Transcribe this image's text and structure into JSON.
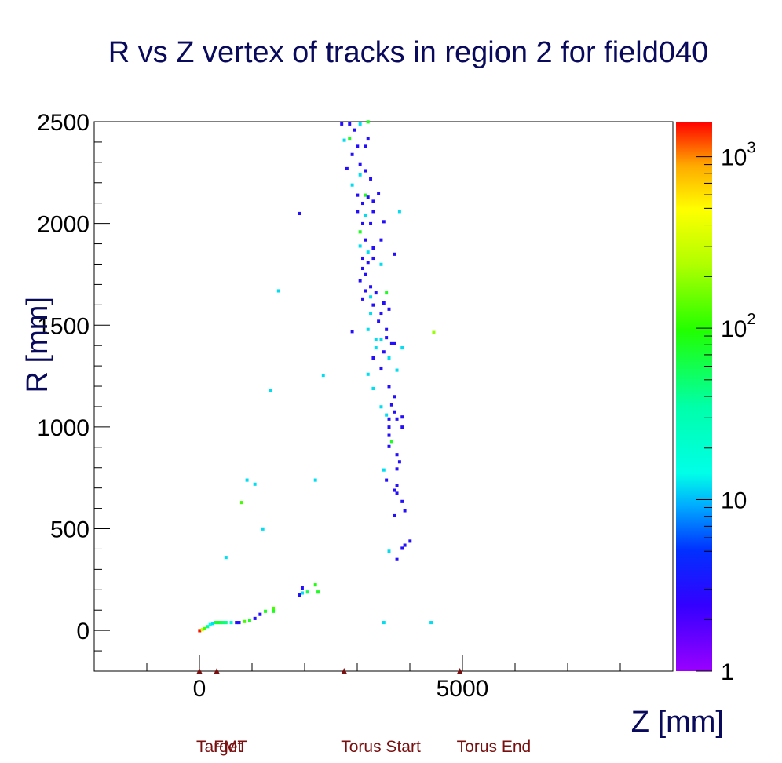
{
  "chart_data": {
    "type": "heatmap",
    "title": "R vs Z vertex of tracks in region 2 for field040",
    "xlabel": "Z [mm]",
    "ylabel": "R [mm]",
    "xlim": [
      -2000,
      9000
    ],
    "ylim": [
      -200,
      2500
    ],
    "xticks": [
      0,
      5000
    ],
    "yticks": [
      0,
      500,
      1000,
      1500,
      2000,
      2500
    ],
    "colorbar": {
      "scale": "log",
      "min": 1,
      "max": 1600,
      "tick_labels": [
        "1",
        "10",
        "10^2",
        "10^3"
      ],
      "tick_values": [
        1,
        10,
        100,
        1000
      ]
    },
    "grid": false,
    "cells": [
      [
        0,
        0,
        1500
      ],
      [
        50,
        5,
        300
      ],
      [
        100,
        10,
        120
      ],
      [
        150,
        20,
        40
      ],
      [
        200,
        30,
        15
      ],
      [
        250,
        35,
        12
      ],
      [
        300,
        40,
        60
      ],
      [
        350,
        40,
        80
      ],
      [
        400,
        40,
        60
      ],
      [
        450,
        40,
        50
      ],
      [
        500,
        40,
        40
      ],
      [
        600,
        40,
        20
      ],
      [
        700,
        40,
        3
      ],
      [
        750,
        40,
        3
      ],
      [
        850,
        45,
        120
      ],
      [
        950,
        50,
        80
      ],
      [
        1050,
        60,
        3
      ],
      [
        1150,
        80,
        3
      ],
      [
        1250,
        95,
        80
      ],
      [
        1400,
        110,
        120
      ],
      [
        1400,
        95,
        80
      ],
      [
        1900,
        175,
        3
      ],
      [
        1950,
        185,
        12
      ],
      [
        2050,
        190,
        60
      ],
      [
        1950,
        210,
        3
      ],
      [
        2200,
        225,
        90
      ],
      [
        2250,
        190,
        80
      ],
      [
        500,
        360,
        12
      ],
      [
        1200,
        500,
        12
      ],
      [
        800,
        630,
        120
      ],
      [
        900,
        740,
        12
      ],
      [
        1050,
        720,
        12
      ],
      [
        2200,
        740,
        12
      ],
      [
        1350,
        1180,
        12
      ],
      [
        2350,
        1255,
        12
      ],
      [
        1500,
        1670,
        12
      ],
      [
        1900,
        2050,
        3
      ],
      [
        4450,
        1465,
        200
      ],
      [
        3500,
        40,
        12
      ],
      [
        4400,
        40,
        12
      ],
      [
        3750,
        350,
        3
      ],
      [
        3600,
        390,
        12
      ],
      [
        3850,
        405,
        3
      ],
      [
        3900,
        420,
        3
      ],
      [
        4000,
        440,
        3
      ],
      [
        3700,
        565,
        3
      ],
      [
        3900,
        590,
        3
      ],
      [
        3850,
        635,
        3
      ],
      [
        3750,
        675,
        3
      ],
      [
        3700,
        690,
        3
      ],
      [
        3750,
        715,
        3
      ],
      [
        3550,
        740,
        3
      ],
      [
        3500,
        790,
        12
      ],
      [
        3750,
        795,
        3
      ],
      [
        3800,
        830,
        3
      ],
      [
        3750,
        865,
        3
      ],
      [
        3600,
        905,
        3
      ],
      [
        3650,
        930,
        80
      ],
      [
        3600,
        960,
        3
      ],
      [
        3600,
        1000,
        3
      ],
      [
        3850,
        1000,
        3
      ],
      [
        3600,
        1040,
        3
      ],
      [
        3550,
        1060,
        12
      ],
      [
        3700,
        1075,
        3
      ],
      [
        3750,
        1040,
        3
      ],
      [
        3850,
        1050,
        3
      ],
      [
        3450,
        1100,
        12
      ],
      [
        3650,
        1110,
        3
      ],
      [
        3700,
        1150,
        3
      ],
      [
        3300,
        1190,
        12
      ],
      [
        3600,
        1200,
        3
      ],
      [
        3200,
        1260,
        12
      ],
      [
        3450,
        1290,
        3
      ],
      [
        3750,
        1280,
        12
      ],
      [
        3300,
        1340,
        3
      ],
      [
        3600,
        1340,
        12
      ],
      [
        3500,
        1370,
        3
      ],
      [
        3350,
        1390,
        12
      ],
      [
        3650,
        1410,
        3
      ],
      [
        3850,
        1390,
        12
      ],
      [
        3700,
        1410,
        3
      ],
      [
        3350,
        1430,
        12
      ],
      [
        3450,
        1430,
        12
      ],
      [
        3550,
        1440,
        3
      ],
      [
        2900,
        1470,
        3
      ],
      [
        3200,
        1480,
        12
      ],
      [
        3550,
        1480,
        3
      ],
      [
        3400,
        1520,
        3
      ],
      [
        3250,
        1560,
        12
      ],
      [
        3450,
        1560,
        3
      ],
      [
        3600,
        1580,
        3
      ],
      [
        3300,
        1600,
        3
      ],
      [
        3500,
        1610,
        3
      ],
      [
        3100,
        1630,
        3
      ],
      [
        3250,
        1640,
        12
      ],
      [
        3350,
        1660,
        3
      ],
      [
        3550,
        1660,
        80
      ],
      [
        3150,
        1670,
        3
      ],
      [
        3250,
        1690,
        3
      ],
      [
        3050,
        1720,
        3
      ],
      [
        3150,
        1750,
        3
      ],
      [
        3100,
        1780,
        3
      ],
      [
        3200,
        1810,
        3
      ],
      [
        3450,
        1800,
        12
      ],
      [
        3700,
        1850,
        3
      ],
      [
        3100,
        1830,
        3
      ],
      [
        3300,
        1830,
        3
      ],
      [
        3200,
        1860,
        12
      ],
      [
        3300,
        1880,
        3
      ],
      [
        3050,
        1890,
        12
      ],
      [
        3150,
        1920,
        3
      ],
      [
        3450,
        1920,
        3
      ],
      [
        3050,
        1960,
        80
      ],
      [
        3100,
        2000,
        3
      ],
      [
        3250,
        2000,
        3
      ],
      [
        3500,
        2010,
        3
      ],
      [
        3150,
        2040,
        12
      ],
      [
        3800,
        2060,
        12
      ],
      [
        3000,
        2060,
        3
      ],
      [
        3300,
        2060,
        3
      ],
      [
        3100,
        2100,
        3
      ],
      [
        3300,
        2110,
        3
      ],
      [
        3000,
        2140,
        3
      ],
      [
        3150,
        2140,
        80
      ],
      [
        3200,
        2130,
        3
      ],
      [
        3400,
        2150,
        3
      ],
      [
        2900,
        2190,
        12
      ],
      [
        3250,
        2220,
        3
      ],
      [
        3050,
        2240,
        12
      ],
      [
        3150,
        2260,
        3
      ],
      [
        2800,
        2270,
        3
      ],
      [
        3050,
        2290,
        3
      ],
      [
        2900,
        2340,
        3
      ],
      [
        3000,
        2380,
        3
      ],
      [
        3150,
        2380,
        3
      ],
      [
        2750,
        2410,
        12
      ],
      [
        2850,
        2420,
        80
      ],
      [
        3200,
        2420,
        3
      ],
      [
        2950,
        2460,
        3
      ],
      [
        2700,
        2490,
        3
      ],
      [
        2850,
        2490,
        3
      ],
      [
        3050,
        2490,
        12
      ],
      [
        3200,
        2500,
        80
      ]
    ]
  },
  "markers": [
    {
      "label": "Target",
      "z": 0
    },
    {
      "label": "FMT",
      "z": 330
    },
    {
      "label": "Torus Start",
      "z": 2750
    },
    {
      "label": "Torus End",
      "z": 4950
    }
  ]
}
